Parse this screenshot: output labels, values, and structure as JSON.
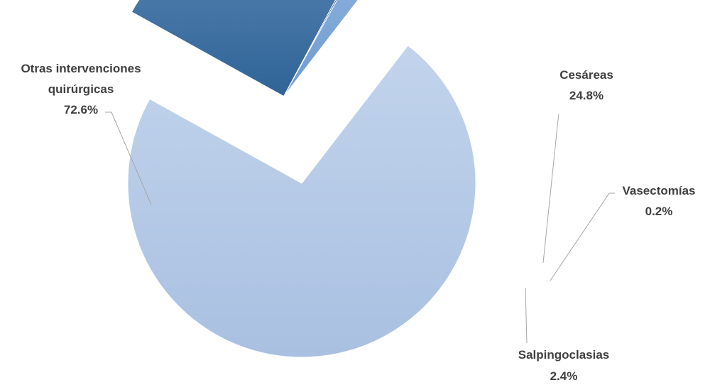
{
  "chart_data": {
    "type": "pie",
    "slices": [
      {
        "name": "Cesáreas",
        "label_lines": [
          "Cesáreas"
        ],
        "value": 24.8,
        "value_label": "24.8%",
        "color": "#3d6fa3",
        "exploded": true
      },
      {
        "name": "Vasectomías",
        "label_lines": [
          "Vasectomías"
        ],
        "value": 0.2,
        "value_label": "0.2%",
        "color": "#2e5f91",
        "exploded": true
      },
      {
        "name": "Salpingoclasias",
        "label_lines": [
          "Salpingoclasias"
        ],
        "value": 2.4,
        "value_label": "2.4%",
        "color": "#7ea6d6",
        "exploded": true
      },
      {
        "name": "Otras intervenciones quirúrgicas",
        "label_lines": [
          "Otras intervenciones",
          "quirúrgicas"
        ],
        "value": 72.6,
        "value_label": "72.6%",
        "color": "#b4c9e6",
        "exploded": false
      }
    ]
  }
}
